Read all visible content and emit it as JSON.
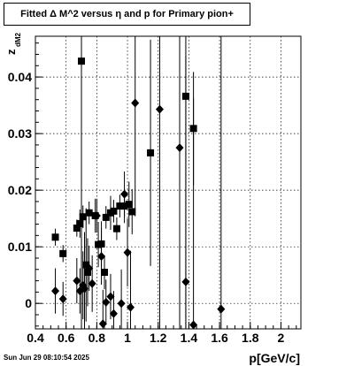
{
  "title": "Fitted Δ M^2 versus η and p for Primary pion+",
  "footer_timestamp": "Sun Jun 29 08:10:54 2025",
  "chart_data": {
    "type": "scatter",
    "xlabel": "p[GeV/c]",
    "ylabel_main": "z",
    "ylabel_sub": "dM2",
    "xlim": [
      0.4,
      2.13
    ],
    "ylim": [
      -0.0045,
      0.0472
    ],
    "x_ticks": [
      0.4,
      0.6,
      0.8,
      1,
      1.2,
      1.4,
      1.6,
      1.8,
      2
    ],
    "x_tick_labels": [
      "0.4",
      "0.6",
      "0.8",
      "1",
      "1.2",
      "1.4",
      "1.6",
      "1.8",
      "2"
    ],
    "y_ticks": [
      0,
      0.01,
      0.02,
      0.03,
      0.04
    ],
    "y_tick_labels": [
      "0",
      "0.01",
      "0.02",
      "0.03",
      "0.04"
    ],
    "grid": true,
    "series": [
      {
        "marker": "square",
        "points": [
          {
            "x": 0.53,
            "y": 0.0117,
            "err": 0.0015
          },
          {
            "x": 0.58,
            "y": 0.0088,
            "err": 0.0015
          },
          {
            "x": 0.67,
            "y": 0.0133,
            "err": 0.0015
          },
          {
            "x": 0.69,
            "y": 0.0141,
            "err": 0.0025
          },
          {
            "x": 0.7,
            "y": 0.0428,
            "err": 0.06
          },
          {
            "x": 0.71,
            "y": 0.0153,
            "err": 0.002
          },
          {
            "x": 0.73,
            "y": 0.0068,
            "err": 0.01
          },
          {
            "x": 0.74,
            "y": 0.0055,
            "err": 0.006
          },
          {
            "x": 0.75,
            "y": 0.016,
            "err": 0.002
          },
          {
            "x": 0.79,
            "y": 0.0155,
            "err": 0.003
          },
          {
            "x": 0.81,
            "y": 0.0104,
            "err": 0.004
          },
          {
            "x": 0.83,
            "y": 0.0105,
            "err": 0.004
          },
          {
            "x": 0.85,
            "y": 0.0055,
            "err": 0.003
          },
          {
            "x": 0.86,
            "y": 0.0152,
            "err": 0.002
          },
          {
            "x": 0.89,
            "y": 0.016,
            "err": 0.003
          },
          {
            "x": 0.91,
            "y": 0.0163,
            "err": 0.002
          },
          {
            "x": 0.93,
            "y": 0.0132,
            "err": 0.002
          },
          {
            "x": 0.95,
            "y": 0.0172,
            "err": 0.002
          },
          {
            "x": 0.98,
            "y": 0.0172,
            "err": 0.003
          },
          {
            "x": 1.01,
            "y": 0.0175,
            "err": 0.004
          },
          {
            "x": 1.03,
            "y": 0.0162,
            "err": 0.004
          },
          {
            "x": 1.15,
            "y": 0.0266,
            "err": 0.02
          },
          {
            "x": 1.38,
            "y": 0.0366,
            "err": 0.06
          },
          {
            "x": 1.43,
            "y": 0.0309,
            "err": 0.01
          }
        ]
      },
      {
        "marker": "diamond",
        "points": [
          {
            "x": 0.53,
            "y": 0.0022,
            "err": 0.004
          },
          {
            "x": 0.58,
            "y": 0.0008,
            "err": 0.003
          },
          {
            "x": 0.67,
            "y": 0.004,
            "err": 0.004
          },
          {
            "x": 0.69,
            "y": 0.0022,
            "err": 0.004
          },
          {
            "x": 0.71,
            "y": 0.0032,
            "err": 0.006
          },
          {
            "x": 0.72,
            "y": 0.0026,
            "err": 0.01
          },
          {
            "x": 0.75,
            "y": 0.0062,
            "err": 0.004
          },
          {
            "x": 0.77,
            "y": 0.0035,
            "err": 0.005
          },
          {
            "x": 0.8,
            "y": 0.0155,
            "err": 0.003
          },
          {
            "x": 0.83,
            "y": 0.0083,
            "err": 0.005
          },
          {
            "x": 0.84,
            "y": -0.0036,
            "err": 0.006
          },
          {
            "x": 0.86,
            "y": 0.0002,
            "err": 0.004
          },
          {
            "x": 0.89,
            "y": 0.0012,
            "err": 0.004
          },
          {
            "x": 0.91,
            "y": -0.0018,
            "err": 0.004
          },
          {
            "x": 0.96,
            "y": 0.0,
            "err": 0.006
          },
          {
            "x": 0.98,
            "y": 0.0193,
            "err": 0.004
          },
          {
            "x": 1.0,
            "y": 0.009,
            "err": 0.006
          },
          {
            "x": 1.02,
            "y": -0.0007,
            "err": 0.01
          },
          {
            "x": 1.05,
            "y": 0.0354,
            "err": 0.02
          },
          {
            "x": 1.21,
            "y": 0.0343,
            "err": 0.04
          },
          {
            "x": 1.34,
            "y": 0.0275,
            "err": 0.04
          },
          {
            "x": 1.38,
            "y": 0.0038,
            "err": 0.04
          },
          {
            "x": 1.43,
            "y": -0.0038,
            "err": 0.04
          },
          {
            "x": 1.61,
            "y": -0.001,
            "err": 0.06
          }
        ]
      }
    ]
  }
}
